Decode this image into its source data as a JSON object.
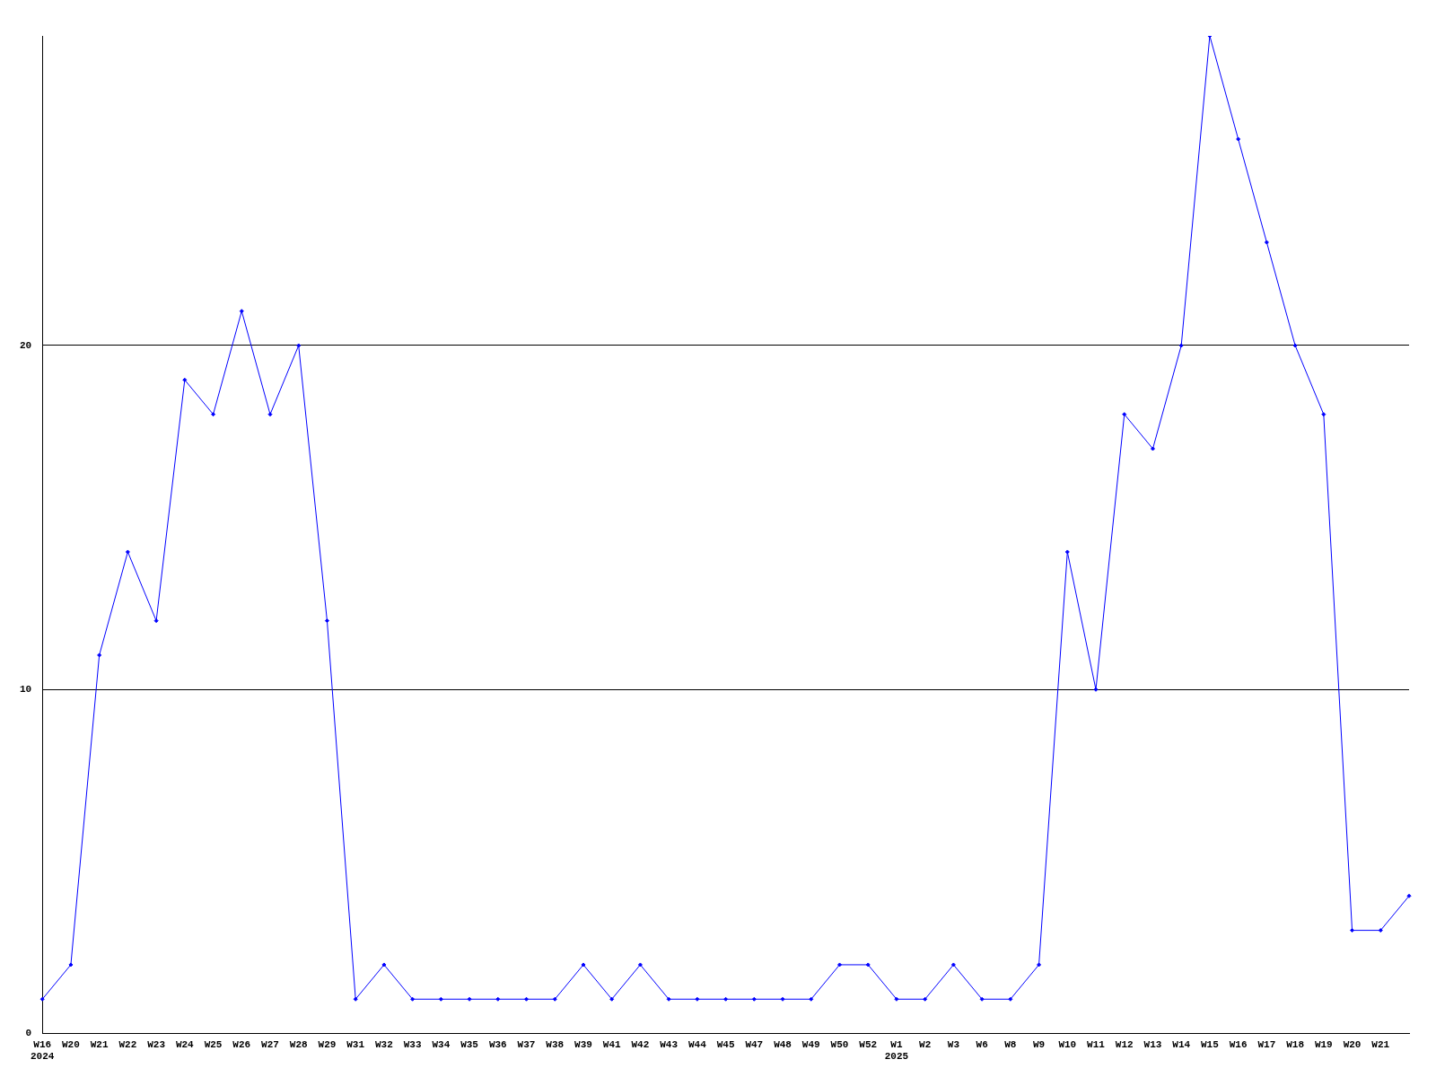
{
  "chart_data": {
    "type": "line",
    "categories": [
      "W16\n2024",
      "W20",
      "W21",
      "W22",
      "W23",
      "W24",
      "W25",
      "W26",
      "W27",
      "W28",
      "W29",
      "W31",
      "W32",
      "W33",
      "W34",
      "W35",
      "W36",
      "W37",
      "W38",
      "W39",
      "W41",
      "W42",
      "W43",
      "W44",
      "W45",
      "W47",
      "W48",
      "W49",
      "W50",
      "W52",
      "W1\n2025",
      "W2",
      "W3",
      "W6",
      "W8",
      "W9",
      "W10",
      "W11",
      "W12",
      "W13",
      "W14",
      "W15",
      "W16",
      "W17",
      "W18",
      "W19",
      "W20",
      "W21",
      null
    ],
    "series": [
      {
        "color": "#0000ff",
        "values": [
          1,
          2,
          11,
          14,
          12,
          19,
          18,
          21,
          18,
          20,
          12,
          1,
          2,
          1,
          1,
          1,
          1,
          1,
          1,
          2,
          1,
          2,
          1,
          1,
          1,
          1,
          1,
          1,
          2,
          2,
          1,
          1,
          2,
          1,
          1,
          2,
          14,
          10,
          18,
          17,
          20,
          29,
          26,
          23,
          20,
          18,
          3,
          3,
          4
        ]
      }
    ],
    "ylim": [
      0,
      29
    ],
    "yticks": [
      0,
      10,
      20
    ],
    "grid": "y",
    "legend": false,
    "marker": "diamond",
    "line_style": "solid"
  }
}
